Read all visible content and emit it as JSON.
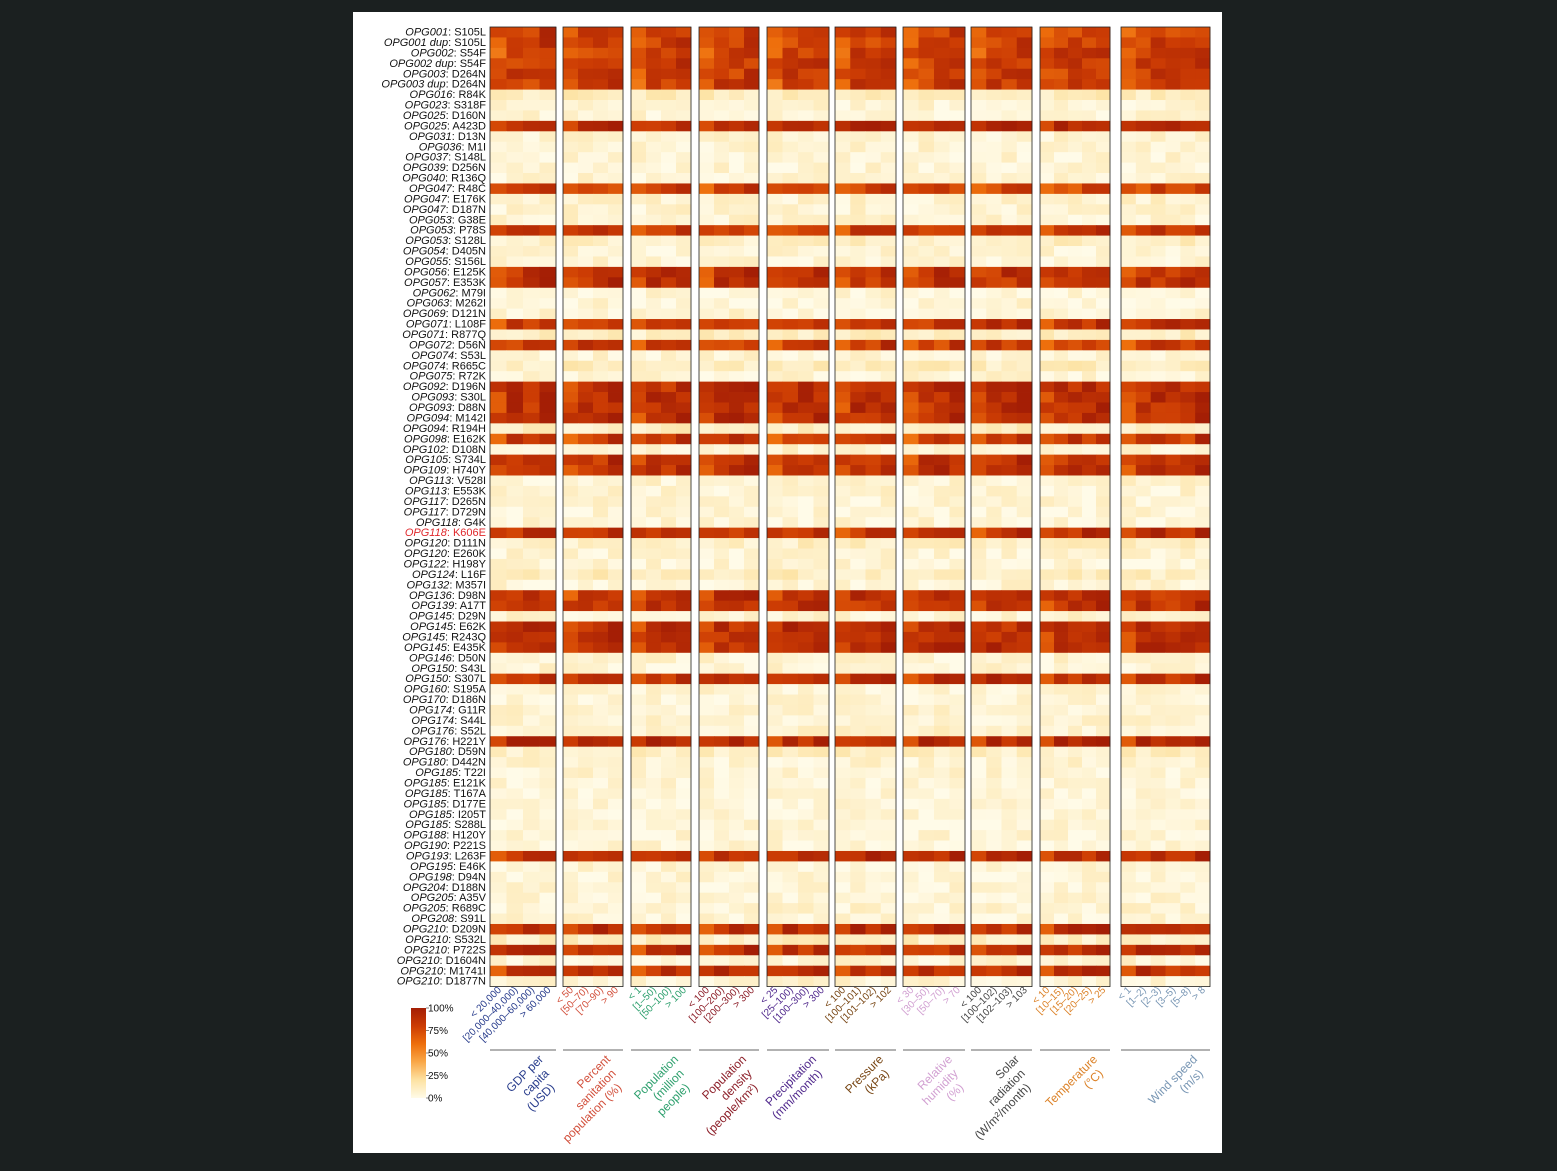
{
  "chart_data": {
    "type": "heatmap",
    "title": "",
    "color_scale": {
      "stops": [
        "#fffbe8",
        "#fde2a2",
        "#f9a848",
        "#ee6f0c",
        "#cc3c04",
        "#a41e05"
      ],
      "tick_labels": [
        "100%",
        "75%",
        "50%",
        "25%",
        "0%"
      ]
    },
    "rows": [
      {
        "gene": "OPG001",
        "mutation": "S105L",
        "dup": false,
        "highlight": false
      },
      {
        "gene": "OPG001",
        "mutation": "S105L",
        "dup": true,
        "highlight": false
      },
      {
        "gene": "OPG002",
        "mutation": "S54F",
        "dup": false,
        "highlight": false
      },
      {
        "gene": "OPG002",
        "mutation": "S54F",
        "dup": true,
        "highlight": false
      },
      {
        "gene": "OPG003",
        "mutation": "D264N",
        "dup": false,
        "highlight": false
      },
      {
        "gene": "OPG003",
        "mutation": "D264N",
        "dup": true,
        "highlight": false
      },
      {
        "gene": "OPG016",
        "mutation": "R84K",
        "dup": false,
        "highlight": false
      },
      {
        "gene": "OPG023",
        "mutation": "S318F",
        "dup": false,
        "highlight": false
      },
      {
        "gene": "OPG025",
        "mutation": "D160N",
        "dup": false,
        "highlight": false
      },
      {
        "gene": "OPG025",
        "mutation": "A423D",
        "dup": false,
        "highlight": false
      },
      {
        "gene": "OPG031",
        "mutation": "D13N",
        "dup": false,
        "highlight": false
      },
      {
        "gene": "OPG036",
        "mutation": "M1I",
        "dup": false,
        "highlight": false
      },
      {
        "gene": "OPG037",
        "mutation": "S148L",
        "dup": false,
        "highlight": false
      },
      {
        "gene": "OPG039",
        "mutation": "D256N",
        "dup": false,
        "highlight": false
      },
      {
        "gene": "OPG040",
        "mutation": "R136Q",
        "dup": false,
        "highlight": false
      },
      {
        "gene": "OPG047",
        "mutation": "R48C",
        "dup": false,
        "highlight": false
      },
      {
        "gene": "OPG047",
        "mutation": "E176K",
        "dup": false,
        "highlight": false
      },
      {
        "gene": "OPG047",
        "mutation": "D187N",
        "dup": false,
        "highlight": false
      },
      {
        "gene": "OPG053",
        "mutation": "G38E",
        "dup": false,
        "highlight": false
      },
      {
        "gene": "OPG053",
        "mutation": "P78S",
        "dup": false,
        "highlight": false
      },
      {
        "gene": "OPG053",
        "mutation": "S128L",
        "dup": false,
        "highlight": false
      },
      {
        "gene": "OPG054",
        "mutation": "D405N",
        "dup": false,
        "highlight": false
      },
      {
        "gene": "OPG055",
        "mutation": "S156L",
        "dup": false,
        "highlight": false
      },
      {
        "gene": "OPG056",
        "mutation": "E125K",
        "dup": false,
        "highlight": false
      },
      {
        "gene": "OPG057",
        "mutation": "E353K",
        "dup": false,
        "highlight": false
      },
      {
        "gene": "OPG062",
        "mutation": "M79I",
        "dup": false,
        "highlight": false
      },
      {
        "gene": "OPG063",
        "mutation": "M262I",
        "dup": false,
        "highlight": false
      },
      {
        "gene": "OPG069",
        "mutation": "D121N",
        "dup": false,
        "highlight": false
      },
      {
        "gene": "OPG071",
        "mutation": "L108F",
        "dup": false,
        "highlight": false
      },
      {
        "gene": "OPG071",
        "mutation": "R877Q",
        "dup": false,
        "highlight": false
      },
      {
        "gene": "OPG072",
        "mutation": "D56N",
        "dup": false,
        "highlight": false
      },
      {
        "gene": "OPG074",
        "mutation": "S53L",
        "dup": false,
        "highlight": false
      },
      {
        "gene": "OPG074",
        "mutation": "R665C",
        "dup": false,
        "highlight": false
      },
      {
        "gene": "OPG075",
        "mutation": "R72K",
        "dup": false,
        "highlight": false
      },
      {
        "gene": "OPG092",
        "mutation": "D196N",
        "dup": false,
        "highlight": false
      },
      {
        "gene": "OPG093",
        "mutation": "S30L",
        "dup": false,
        "highlight": false
      },
      {
        "gene": "OPG093",
        "mutation": "D88N",
        "dup": false,
        "highlight": false
      },
      {
        "gene": "OPG094",
        "mutation": "M142I",
        "dup": false,
        "highlight": false
      },
      {
        "gene": "OPG094",
        "mutation": "R194H",
        "dup": false,
        "highlight": false
      },
      {
        "gene": "OPG098",
        "mutation": "E162K",
        "dup": false,
        "highlight": false
      },
      {
        "gene": "OPG102",
        "mutation": "D108N",
        "dup": false,
        "highlight": false
      },
      {
        "gene": "OPG105",
        "mutation": "S734L",
        "dup": false,
        "highlight": false
      },
      {
        "gene": "OPG109",
        "mutation": "H740Y",
        "dup": false,
        "highlight": false
      },
      {
        "gene": "OPG113",
        "mutation": "V528I",
        "dup": false,
        "highlight": false
      },
      {
        "gene": "OPG113",
        "mutation": "E553K",
        "dup": false,
        "highlight": false
      },
      {
        "gene": "OPG117",
        "mutation": "D265N",
        "dup": false,
        "highlight": false
      },
      {
        "gene": "OPG117",
        "mutation": "D729N",
        "dup": false,
        "highlight": false
      },
      {
        "gene": "OPG118",
        "mutation": "G4K",
        "dup": false,
        "highlight": false
      },
      {
        "gene": "OPG118",
        "mutation": "K606E",
        "dup": false,
        "highlight": true
      },
      {
        "gene": "OPG120",
        "mutation": "D111N",
        "dup": false,
        "highlight": false
      },
      {
        "gene": "OPG120",
        "mutation": "E260K",
        "dup": false,
        "highlight": false
      },
      {
        "gene": "OPG122",
        "mutation": "H198Y",
        "dup": false,
        "highlight": false
      },
      {
        "gene": "OPG124",
        "mutation": "L16F",
        "dup": false,
        "highlight": false
      },
      {
        "gene": "OPG132",
        "mutation": "M357I",
        "dup": false,
        "highlight": false
      },
      {
        "gene": "OPG136",
        "mutation": "D98N",
        "dup": false,
        "highlight": false
      },
      {
        "gene": "OPG139",
        "mutation": "A17T",
        "dup": false,
        "highlight": false
      },
      {
        "gene": "OPG145",
        "mutation": "D29N",
        "dup": false,
        "highlight": false
      },
      {
        "gene": "OPG145",
        "mutation": "E62K",
        "dup": false,
        "highlight": false
      },
      {
        "gene": "OPG145",
        "mutation": "R243Q",
        "dup": false,
        "highlight": false
      },
      {
        "gene": "OPG145",
        "mutation": "E435K",
        "dup": false,
        "highlight": false
      },
      {
        "gene": "OPG146",
        "mutation": "D50N",
        "dup": false,
        "highlight": false
      },
      {
        "gene": "OPG150",
        "mutation": "S43L",
        "dup": false,
        "highlight": false
      },
      {
        "gene": "OPG150",
        "mutation": "S307L",
        "dup": false,
        "highlight": false
      },
      {
        "gene": "OPG160",
        "mutation": "S195A",
        "dup": false,
        "highlight": false
      },
      {
        "gene": "OPG170",
        "mutation": "D186N",
        "dup": false,
        "highlight": false
      },
      {
        "gene": "OPG174",
        "mutation": "G11R",
        "dup": false,
        "highlight": false
      },
      {
        "gene": "OPG174",
        "mutation": "S44L",
        "dup": false,
        "highlight": false
      },
      {
        "gene": "OPG176",
        "mutation": "S52L",
        "dup": false,
        "highlight": false
      },
      {
        "gene": "OPG176",
        "mutation": "H221Y",
        "dup": false,
        "highlight": false
      },
      {
        "gene": "OPG180",
        "mutation": "D59N",
        "dup": false,
        "highlight": false
      },
      {
        "gene": "OPG180",
        "mutation": "D442N",
        "dup": false,
        "highlight": false
      },
      {
        "gene": "OPG185",
        "mutation": "T22I",
        "dup": false,
        "highlight": false
      },
      {
        "gene": "OPG185",
        "mutation": "E121K",
        "dup": false,
        "highlight": false
      },
      {
        "gene": "OPG185",
        "mutation": "T167A",
        "dup": false,
        "highlight": false
      },
      {
        "gene": "OPG185",
        "mutation": "D177E",
        "dup": false,
        "highlight": false
      },
      {
        "gene": "OPG185",
        "mutation": "I205T",
        "dup": false,
        "highlight": false
      },
      {
        "gene": "OPG185",
        "mutation": "S288L",
        "dup": false,
        "highlight": false
      },
      {
        "gene": "OPG188",
        "mutation": "H120Y",
        "dup": false,
        "highlight": false
      },
      {
        "gene": "OPG190",
        "mutation": "P221S",
        "dup": false,
        "highlight": false
      },
      {
        "gene": "OPG193",
        "mutation": "L263F",
        "dup": false,
        "highlight": false
      },
      {
        "gene": "OPG195",
        "mutation": "E46K",
        "dup": false,
        "highlight": false
      },
      {
        "gene": "OPG198",
        "mutation": "D94N",
        "dup": false,
        "highlight": false
      },
      {
        "gene": "OPG204",
        "mutation": "D188N",
        "dup": false,
        "highlight": false
      },
      {
        "gene": "OPG205",
        "mutation": "A35V",
        "dup": false,
        "highlight": false
      },
      {
        "gene": "OPG205",
        "mutation": "R689C",
        "dup": false,
        "highlight": false
      },
      {
        "gene": "OPG208",
        "mutation": "S91L",
        "dup": false,
        "highlight": false
      },
      {
        "gene": "OPG210",
        "mutation": "D209N",
        "dup": false,
        "highlight": false
      },
      {
        "gene": "OPG210",
        "mutation": "S532L",
        "dup": false,
        "highlight": false
      },
      {
        "gene": "OPG210",
        "mutation": "P722S",
        "dup": false,
        "highlight": false
      },
      {
        "gene": "OPG210",
        "mutation": "D1604N",
        "dup": false,
        "highlight": false
      },
      {
        "gene": "OPG210",
        "mutation": "M1741I",
        "dup": false,
        "highlight": false
      },
      {
        "gene": "OPG210",
        "mutation": "D1877N",
        "dup": false,
        "highlight": false
      }
    ],
    "dup_suffix": " dup",
    "row_levels": [
      0.8,
      0.8,
      0.8,
      0.8,
      0.8,
      0.8,
      0.12,
      0.05,
      0.05,
      0.9,
      0.06,
      0.06,
      0.05,
      0.05,
      0.05,
      0.76,
      0.07,
      0.06,
      0.06,
      0.82,
      0.1,
      0.05,
      0.05,
      0.87,
      0.86,
      0.05,
      0.05,
      0.05,
      0.85,
      0.1,
      0.8,
      0.05,
      0.12,
      0.05,
      0.88,
      0.88,
      0.88,
      0.88,
      0.1,
      0.82,
      0.06,
      0.87,
      0.87,
      0.06,
      0.06,
      0.05,
      0.05,
      0.05,
      0.88,
      0.1,
      0.05,
      0.05,
      0.12,
      0.05,
      0.86,
      0.86,
      0.06,
      0.89,
      0.89,
      0.89,
      0.06,
      0.05,
      0.87,
      0.05,
      0.05,
      0.06,
      0.06,
      0.07,
      0.9,
      0.1,
      0.06,
      0.05,
      0.04,
      0.04,
      0.04,
      0.04,
      0.04,
      0.04,
      0.04,
      0.9,
      0.05,
      0.05,
      0.05,
      0.05,
      0.06,
      0.05,
      0.89,
      0.1,
      0.87,
      0.05,
      0.86,
      0.05
    ],
    "groups": [
      {
        "label_lines": [
          "GDP per",
          "capita",
          "(USD)"
        ],
        "color": "#283c8c",
        "categories": [
          "< 20,000",
          "[20,000–40,000)",
          "[40,000–60,000)",
          "> 60,000"
        ]
      },
      {
        "label_lines": [
          "Percent",
          "sanitation",
          "population (%)"
        ],
        "color": "#d2503c",
        "categories": [
          "< 50",
          "[50–70)",
          "[70–90)",
          "> 90"
        ]
      },
      {
        "label_lines": [
          "Population",
          "(million",
          "people)"
        ],
        "color": "#2ea06e",
        "categories": [
          "< 1",
          "[1–50)",
          "[50–100)",
          "> 100"
        ]
      },
      {
        "label_lines": [
          "Population",
          "density",
          "(people/km²)"
        ],
        "color": "#8c1e28",
        "categories": [
          "< 100",
          "[100–200)",
          "[200–300)",
          "> 300"
        ]
      },
      {
        "label_lines": [
          "Precipitation",
          "(mm/month)"
        ],
        "color": "#50288c",
        "categories": [
          "< 25",
          "[25–100)",
          "[100–300)",
          "> 300"
        ]
      },
      {
        "label_lines": [
          "Pressure",
          "(kPa)"
        ],
        "color": "#784614",
        "categories": [
          "< 100",
          "[100–101)",
          "[101–102)",
          "> 102"
        ]
      },
      {
        "label_lines": [
          "Relative",
          "humidity",
          "(%)"
        ],
        "color": "#d2a0d2",
        "categories": [
          "< 30",
          "[30–50)",
          "[50–70)",
          "> 70"
        ]
      },
      {
        "label_lines": [
          "Solar",
          "radiation",
          "(W/m²/month)"
        ],
        "color": "#464646",
        "categories": [
          "< 100",
          "[100–102)",
          "[102–103)",
          "> 103"
        ]
      },
      {
        "label_lines": [
          "Temperature",
          "(°C)"
        ],
        "color": "#dc8228",
        "categories": [
          "< 10",
          "[10–15)",
          "[15–20)",
          "[20–25)",
          "> 25"
        ]
      },
      {
        "label_lines": [
          "Wind speed",
          "(m/s)"
        ],
        "color": "#7896b4",
        "categories": [
          "< 1",
          "[1–2)",
          "[2–3)",
          "[3–5)",
          "[5–8)",
          "> 8"
        ]
      }
    ]
  }
}
